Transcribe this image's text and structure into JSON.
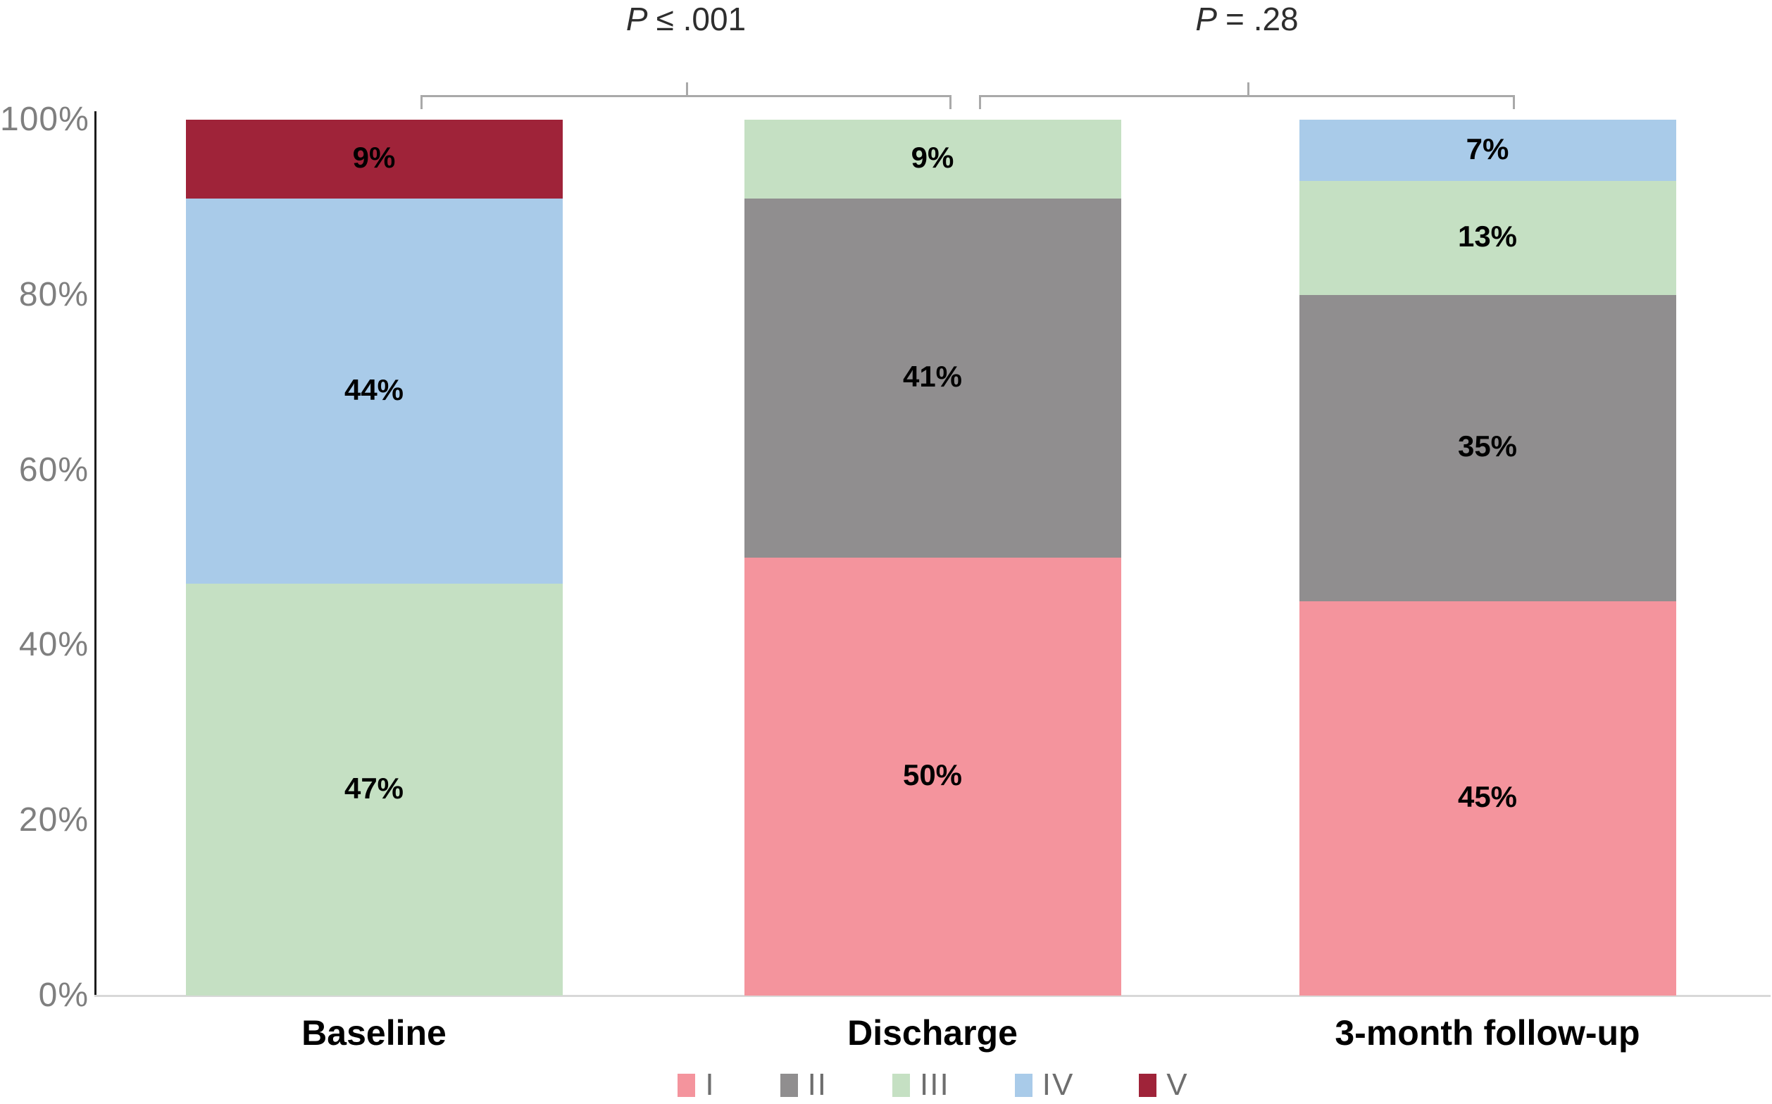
{
  "chart_data": {
    "type": "bar",
    "stacked": true,
    "percent_stacked": true,
    "title": "",
    "xlabel": "",
    "ylabel": "",
    "categories": [
      "Baseline",
      "Discharge",
      "3-month follow-up"
    ],
    "series": [
      {
        "name": "I",
        "color": "#F4949D",
        "values": [
          0,
          50,
          45
        ]
      },
      {
        "name": "II",
        "color": "#908E8F",
        "values": [
          0,
          41,
          35
        ]
      },
      {
        "name": "III",
        "color": "#C5E0C3",
        "values": [
          47,
          9,
          13
        ]
      },
      {
        "name": "IV",
        "color": "#A9CBE9",
        "values": [
          44,
          0,
          7
        ]
      },
      {
        "name": "V",
        "color": "#9F2339",
        "values": [
          9,
          0,
          0
        ]
      }
    ],
    "value_suffix": "%",
    "ylim": [
      0,
      100
    ],
    "yticks": [
      "0%",
      "20%",
      "40%",
      "60%",
      "80%",
      "100%"
    ],
    "grid": false,
    "legend_position": "bottom",
    "annotations": [
      {
        "stat": "P",
        "rest": "≤ .001",
        "connects": [
          "Baseline",
          "Discharge"
        ]
      },
      {
        "stat": "P",
        "rest": "= .28",
        "connects": [
          "Discharge",
          "3-month follow-up"
        ]
      }
    ]
  }
}
